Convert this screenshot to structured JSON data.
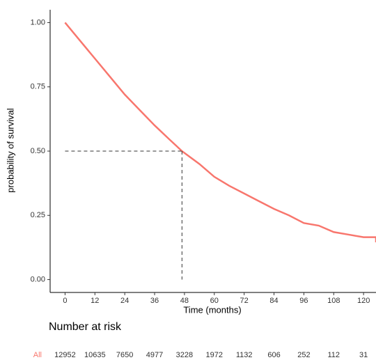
{
  "chart_data": {
    "type": "survival",
    "x_label": "Time (months)",
    "y_label": "probability of survival",
    "x": [
      0,
      6,
      12,
      18,
      24,
      30,
      36,
      42,
      47,
      54,
      60,
      66,
      72,
      78,
      84,
      90,
      96,
      102,
      108,
      114,
      120,
      125,
      125
    ],
    "series": [
      {
        "name": "All",
        "color": "#f8766d",
        "values": [
          1.0,
          0.93,
          0.86,
          0.79,
          0.72,
          0.66,
          0.6,
          0.545,
          0.5,
          0.45,
          0.4,
          0.365,
          0.335,
          0.305,
          0.275,
          0.25,
          0.22,
          0.21,
          0.185,
          0.175,
          0.165,
          0.165,
          0.145
        ]
      }
    ],
    "median": {
      "time": 47,
      "survival": 0.5
    },
    "xlim": [
      -6,
      125
    ],
    "xticks": [
      0,
      12,
      24,
      36,
      48,
      60,
      72,
      84,
      96,
      108,
      120
    ],
    "ylim": [
      -0.05,
      1.05
    ],
    "yticks": [
      {
        "value": 0,
        "label": "0.00"
      },
      {
        "value": 0.25,
        "label": "0.25"
      },
      {
        "value": 0.5,
        "label": "0.50"
      },
      {
        "value": 0.75,
        "label": "0.75"
      },
      {
        "value": 1,
        "label": "1.00"
      }
    ],
    "grid": false,
    "risk_table": {
      "title": "Number at risk",
      "series": [
        {
          "name": "All",
          "color": "#f8766d",
          "values": [
            12952,
            10635,
            7650,
            4977,
            3228,
            1972,
            1132,
            606,
            252,
            112,
            31
          ]
        }
      ]
    }
  }
}
